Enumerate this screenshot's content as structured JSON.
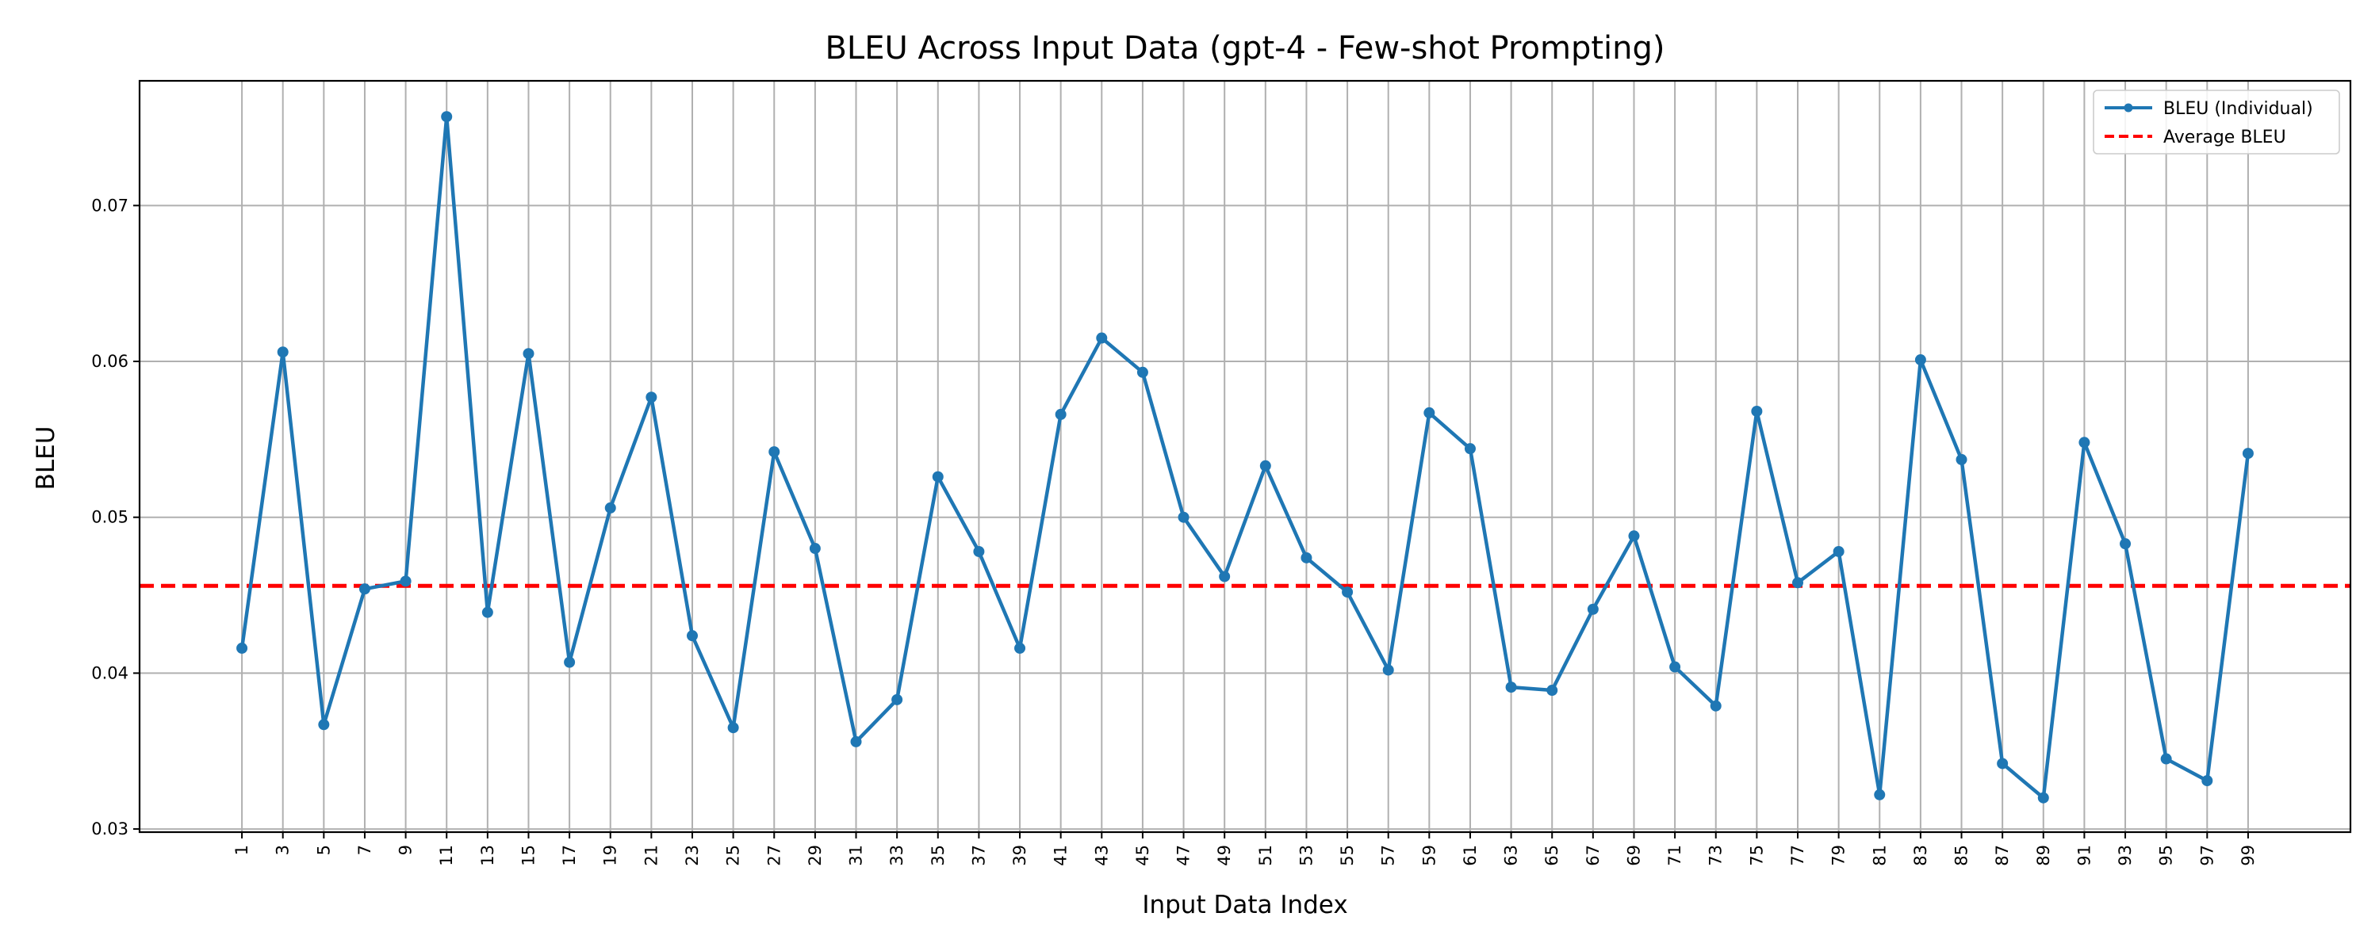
{
  "chart_data": {
    "type": "line",
    "title": "BLEU Across Input Data (gpt-4 - Few-shot Prompting)",
    "xlabel": "Input Data Index",
    "ylabel": "BLEU",
    "x": [
      1,
      3,
      5,
      7,
      9,
      11,
      13,
      15,
      17,
      19,
      21,
      23,
      25,
      27,
      29,
      31,
      33,
      35,
      37,
      39,
      41,
      43,
      45,
      47,
      49,
      51,
      53,
      55,
      57,
      59,
      61,
      63,
      65,
      67,
      69,
      71,
      73,
      75,
      77,
      79,
      81,
      83,
      85,
      87,
      89,
      91,
      93,
      95,
      97,
      99
    ],
    "xlim": [
      -4,
      104
    ],
    "ylim": [
      0.0298,
      0.078
    ],
    "yticks": [
      0.03,
      0.04,
      0.05,
      0.06,
      0.07
    ],
    "ytick_labels": [
      "0.03",
      "0.04",
      "0.05",
      "0.06",
      "0.07"
    ],
    "grid": true,
    "legend_position": "top-right",
    "series": [
      {
        "name": "BLEU (Individual)",
        "color": "#1f77b4",
        "style": "solid-with-markers",
        "values": [
          0.0416,
          0.0606,
          0.0367,
          0.0454,
          0.0459,
          0.0757,
          0.0439,
          0.0605,
          0.0407,
          0.0506,
          0.0577,
          0.0424,
          0.0365,
          0.0542,
          0.048,
          0.0356,
          0.0383,
          0.0526,
          0.0478,
          0.0416,
          0.0566,
          0.0615,
          0.0593,
          0.05,
          0.0462,
          0.0533,
          0.0474,
          0.0452,
          0.0402,
          0.0567,
          0.0544,
          0.0391,
          0.0389,
          0.0441,
          0.0488,
          0.0404,
          0.0379,
          0.0568,
          0.0458,
          0.0478,
          0.0322,
          0.0601,
          0.0537,
          0.0342,
          0.032,
          0.0548,
          0.0483,
          0.0345,
          0.0331,
          0.0541
        ]
      },
      {
        "name": "Average BLEU",
        "color": "#ff0000",
        "style": "dashed",
        "value": 0.0456
      }
    ]
  }
}
